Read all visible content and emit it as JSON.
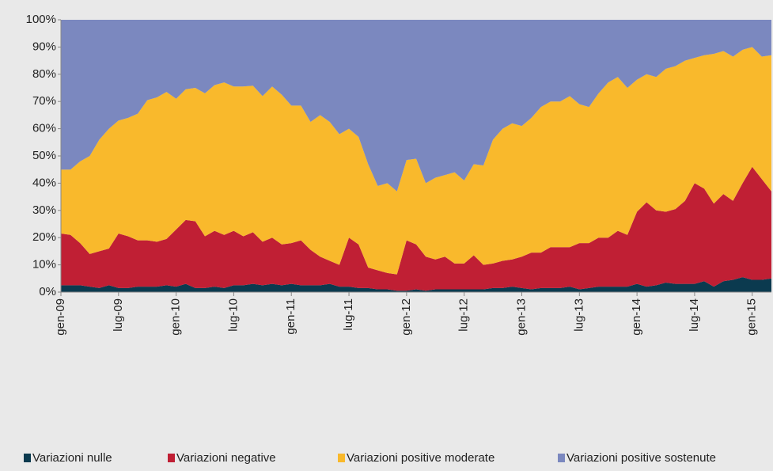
{
  "chart_data": {
    "type": "stacked_area",
    "categories": [
      "gen-09",
      null,
      null,
      null,
      null,
      null,
      "lug-09",
      null,
      null,
      null,
      null,
      null,
      "gen-10",
      null,
      null,
      null,
      null,
      null,
      "lug-10",
      null,
      null,
      null,
      null,
      null,
      "gen-11",
      null,
      null,
      null,
      null,
      null,
      "lug-11",
      null,
      null,
      null,
      null,
      null,
      "gen-12",
      null,
      null,
      null,
      null,
      null,
      "lug-12",
      null,
      null,
      null,
      null,
      null,
      "gen-13",
      null,
      null,
      null,
      null,
      null,
      "lug-13",
      null,
      null,
      null,
      null,
      null,
      "gen-14",
      null,
      null,
      null,
      null,
      null,
      "lug-14",
      null,
      null,
      null,
      null,
      null,
      "gen-15",
      null,
      null
    ],
    "series": [
      {
        "name": "Variazioni nulle",
        "color": "#0b3a4f",
        "values": [
          2.5,
          2.5,
          2.5,
          2,
          1.5,
          2.5,
          1.5,
          1.5,
          2,
          2,
          2,
          2.5,
          2,
          3,
          1.5,
          1.5,
          2,
          1.5,
          2.5,
          2.5,
          3,
          2.5,
          3,
          2.5,
          3,
          2.5,
          2.5,
          2.5,
          3,
          2,
          2,
          1.5,
          1.5,
          1,
          1,
          0.5,
          0.5,
          1,
          0.5,
          1,
          1,
          1,
          1,
          1,
          1,
          1.5,
          1.5,
          2,
          1.5,
          1,
          1.5,
          1.5,
          1.5,
          2,
          1,
          1.5,
          2,
          2,
          2,
          2,
          3,
          2,
          2.5,
          3.5,
          3,
          3,
          3,
          4,
          2,
          4,
          4.5,
          5.5,
          4.5,
          4.5,
          5
        ]
      },
      {
        "name": "Variazioni negative",
        "color": "#c01f34",
        "values": [
          19,
          18.5,
          15.5,
          12,
          13.5,
          13.5,
          20,
          19,
          17,
          17,
          16.5,
          17,
          21,
          23.5,
          24.5,
          19,
          20.5,
          19.5,
          20,
          18,
          19,
          16,
          17,
          15,
          15,
          16.5,
          13,
          10.5,
          8.5,
          8,
          18,
          16,
          7.5,
          7,
          6,
          6,
          18.5,
          16.5,
          12.5,
          11,
          12,
          9.5,
          9.5,
          12.5,
          9,
          9,
          10,
          10,
          11.5,
          13.5,
          13,
          15,
          15,
          14.5,
          17,
          16.5,
          18,
          18,
          20.5,
          19,
          26.5,
          31,
          27.5,
          26,
          27.5,
          30.5,
          37,
          34,
          30.5,
          32,
          29,
          34.5,
          41.5,
          37,
          32
        ]
      },
      {
        "name": "Variazioni positive moderate",
        "color": "#f9b92c",
        "values": [
          23.5,
          24,
          30,
          36,
          41,
          44,
          41.5,
          43.5,
          46.5,
          51.5,
          53,
          54,
          48,
          48,
          49,
          52.5,
          53.5,
          56,
          53,
          55,
          53.8,
          53.5,
          55.5,
          55,
          50.5,
          49.5,
          47,
          52,
          51,
          48,
          40,
          39.5,
          38,
          31,
          33,
          30.5,
          29.5,
          31.5,
          27,
          30,
          30,
          33.5,
          30.5,
          33.5,
          36.5,
          45.5,
          48.5,
          50,
          48,
          49.5,
          53.5,
          53.5,
          53.5,
          55.5,
          51,
          50,
          53,
          57,
          56.5,
          54,
          48.5,
          47,
          49,
          52.5,
          52.5,
          51.5,
          46,
          49,
          55,
          52.5,
          53,
          49,
          44,
          45,
          50
        ]
      },
      {
        "name": "Variazioni positive sostenute",
        "color": "#7b88bf",
        "values": [
          55,
          55,
          52,
          50,
          44,
          40,
          37,
          36,
          34.5,
          29.5,
          28.5,
          26.5,
          29,
          25.5,
          25,
          27,
          24,
          23,
          24.5,
          24.5,
          24.2,
          28,
          24.5,
          27.5,
          31.5,
          31.5,
          37.5,
          35,
          37.5,
          42,
          40,
          43,
          53,
          61,
          60,
          63,
          51.5,
          51,
          60,
          58,
          57,
          56,
          59,
          53,
          53.5,
          44,
          40,
          38,
          39,
          36,
          32,
          30,
          30,
          28,
          31,
          32,
          27,
          23,
          21,
          25,
          22,
          20,
          21,
          18,
          17,
          15,
          14,
          13,
          12.5,
          11.5,
          13.5,
          11,
          10,
          13.5,
          13
        ]
      }
    ],
    "ylim": [
      0,
      100
    ],
    "yticks": [
      {
        "value": 0,
        "label": "0%"
      },
      {
        "value": 10,
        "label": "10%"
      },
      {
        "value": 20,
        "label": "20%"
      },
      {
        "value": 30,
        "label": "30%"
      },
      {
        "value": 40,
        "label": "40%"
      },
      {
        "value": 50,
        "label": "50%"
      },
      {
        "value": 60,
        "label": "60%"
      },
      {
        "value": 70,
        "label": "70%"
      },
      {
        "value": 80,
        "label": "80%"
      },
      {
        "value": 90,
        "label": "90%"
      },
      {
        "value": 100,
        "label": "100%"
      }
    ],
    "legend": "bottom"
  }
}
